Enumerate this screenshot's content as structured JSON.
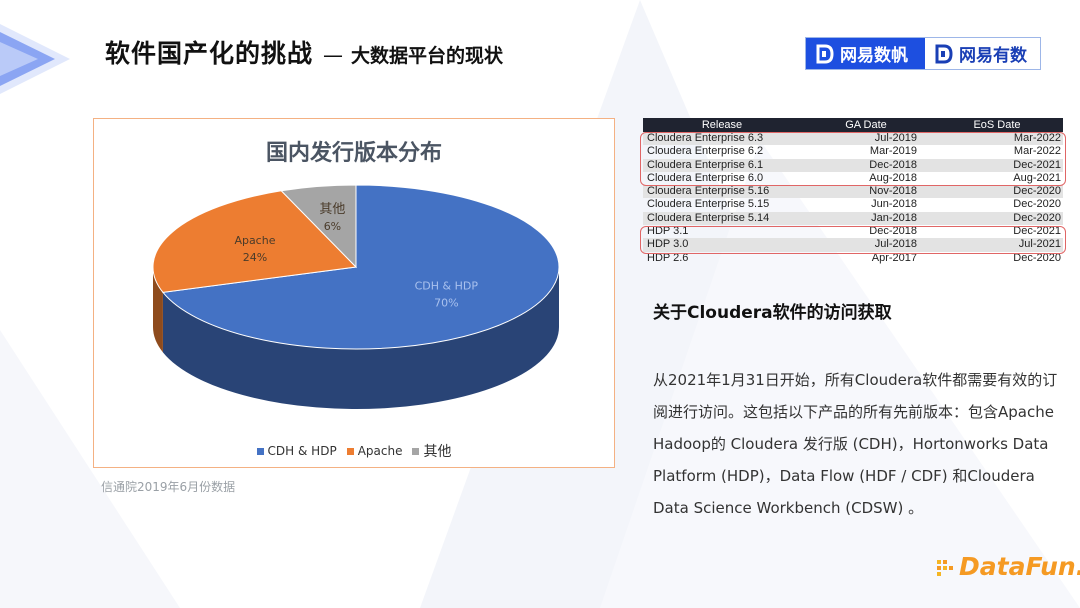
{
  "header": {
    "title": "软件国产化的挑战",
    "dash": "—",
    "subtitle": "大数据平台的现状"
  },
  "logos": {
    "left": "网易数帆",
    "right": "网易有数"
  },
  "chart_data": {
    "type": "pie",
    "title": "国内发行版本分布",
    "categories": [
      "CDH & HDP",
      "Apache",
      "其他"
    ],
    "values": [
      70,
      24,
      6
    ],
    "labels": [
      "70%",
      "24%",
      "6%"
    ],
    "colors": [
      "#4472c4",
      "#ed7d31",
      "#a5a5a5"
    ],
    "legend_position": "bottom"
  },
  "source_note": "信通院2019年6月份数据",
  "release_table": {
    "headers": [
      "Release",
      "GA Date",
      "EoS Date"
    ],
    "rows": [
      [
        "Cloudera Enterprise 6.3",
        "Jul-2019",
        "Mar-2022"
      ],
      [
        "Cloudera Enterprise 6.2",
        "Mar-2019",
        "Mar-2022"
      ],
      [
        "Cloudera Enterprise 6.1",
        "Dec-2018",
        "Dec-2021"
      ],
      [
        "Cloudera Enterprise 6.0",
        "Aug-2018",
        "Aug-2021"
      ],
      [
        "Cloudera Enterprise 5.16",
        "Nov-2018",
        "Dec-2020"
      ],
      [
        "Cloudera Enterprise 5.15",
        "Jun-2018",
        "Dec-2020"
      ],
      [
        "Cloudera Enterprise 5.14",
        "Jan-2018",
        "Dec-2020"
      ],
      [
        "HDP 3.1",
        "Dec-2018",
        "Dec-2021"
      ],
      [
        "HDP 3.0",
        "Jul-2018",
        "Jul-2021"
      ],
      [
        "HDP 2.6",
        "Apr-2017",
        "Dec-2020"
      ]
    ]
  },
  "section": {
    "title": "关于Cloudera软件的访问获取",
    "paragraph": "从2021年1月31日开始，所有Cloudera软件都需要有效的订阅进行访问。这包括以下产品的所有先前版本：包含Apache Hadoop的 Cloudera 发行版 (CDH)，Hortonworks Data Platform (HDP)，Data Flow (HDF / CDF) 和Cloudera Data Science Workbench (CDSW) 。"
  },
  "brand": {
    "name": "DataFun."
  }
}
